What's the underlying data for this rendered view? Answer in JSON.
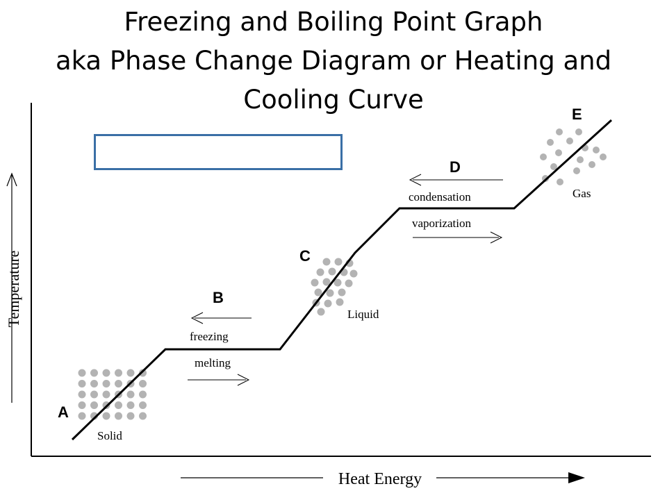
{
  "title": {
    "line1": "Freezing and Boiling Point Graph",
    "line2": "aka Phase Change Diagram or Heating and",
    "line3": "Cooling Curve"
  },
  "answer_box": {
    "value": ""
  },
  "axes": {
    "y_label": "Temperature",
    "x_label": "Heat Energy"
  },
  "points": {
    "a": "A",
    "b": "B",
    "c": "C",
    "d": "D",
    "e": "E"
  },
  "phases": {
    "solid": "Solid",
    "liquid": "Liquid",
    "gas": "Gas"
  },
  "transitions": {
    "freezing": "freezing",
    "melting": "melting",
    "condensation": "condensation",
    "vaporization": "vaporization"
  },
  "colors": {
    "curve": "#000000",
    "particle": "#b3b3b3",
    "box_border": "#3a6fa6"
  }
}
